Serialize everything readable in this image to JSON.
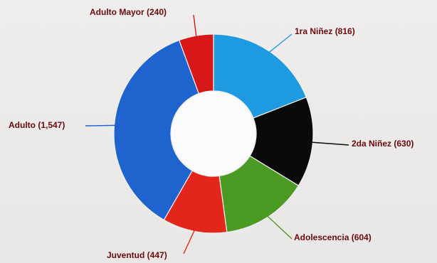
{
  "chart_data": {
    "type": "pie",
    "variant": "donut",
    "title": "",
    "slices": [
      {
        "label": "1ra Niñez (816)",
        "name": "1ra Niñez",
        "value": 816,
        "color": "#1e9be0"
      },
      {
        "label": "2da Niñez (630)",
        "name": "2da Niñez",
        "value": 630,
        "color": "#0a0a0a"
      },
      {
        "label": "Adolescencia (604)",
        "name": "Adolescencia",
        "value": 604,
        "color": "#4a9a24"
      },
      {
        "label": "Juventud (447)",
        "name": "Juventud",
        "value": 447,
        "color": "#e3261c"
      },
      {
        "label": "Adulto (1,547)",
        "name": "Adulto",
        "value": 1547,
        "color": "#1f63cf"
      },
      {
        "label": "Adulto Mayor (240)",
        "name": "Adulto Mayor",
        "value": 240,
        "color": "#d81818"
      }
    ],
    "legend": "none",
    "labels": "outside-with-leader-lines"
  }
}
